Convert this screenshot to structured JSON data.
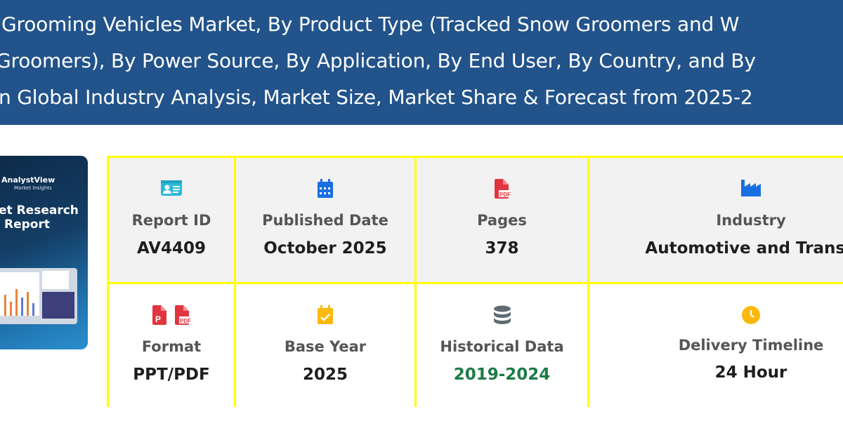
{
  "header": {
    "title_lines": [
      "Grooming Vehicles Market, By Product Type (Tracked Snow Groomers and W",
      "Groomers), By Power Source, By Application, By End User, By Country, and By",
      "n Global Industry Analysis, Market Size, Market Share & Forecast from 2025-2"
    ],
    "background": "#22538a"
  },
  "thumbnail": {
    "brand": "AnalystView",
    "brand_sub": "Market Insights",
    "title_line1": "et Research",
    "title_line2": "Report"
  },
  "info": {
    "border_color": "#ffff00",
    "cells": [
      {
        "icon": "id-card-icon",
        "label": "Report ID",
        "value": "AV4409"
      },
      {
        "icon": "calendar-icon",
        "label": "Published Date",
        "value": "October 2025"
      },
      {
        "icon": "pdf-file-icon",
        "label": "Pages",
        "value": "378"
      },
      {
        "icon": "industry-icon",
        "label": "Industry",
        "value": "Automotive and Transp"
      },
      {
        "icon": "ppt-pdf-icon",
        "label": "Format",
        "value": "PPT/PDF"
      },
      {
        "icon": "calendar-check-icon",
        "label": "Base Year",
        "value": "2025"
      },
      {
        "icon": "database-icon",
        "label": "Historical Data",
        "value": "2019-2024",
        "value_color": "#1e7a46"
      },
      {
        "icon": "clock-icon",
        "label": "Delivery Timeline",
        "value": "24 Hour"
      }
    ]
  }
}
